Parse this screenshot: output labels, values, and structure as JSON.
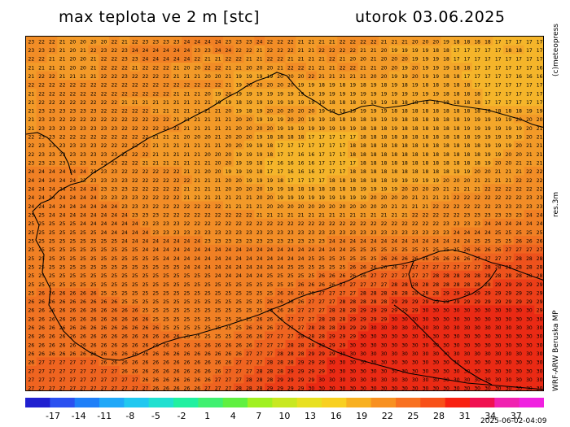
{
  "header": {
    "title": "max teplota ve 2 m [stc]",
    "date": "utorok 03.06.2025"
  },
  "side": {
    "credit": "(c)meteopress",
    "resolution": "res.3m",
    "model": "WRF-ARW Beruska MP"
  },
  "colorbar": {
    "labels": [
      "-17",
      "-14",
      "-11",
      "-8",
      "-5",
      "-2",
      "1",
      "4",
      "7",
      "10",
      "13",
      "16",
      "19",
      "22",
      "25",
      "28",
      "31",
      "34",
      "37"
    ],
    "colors": [
      "#2020d0",
      "#2b50f0",
      "#1f7ff8",
      "#20a8f8",
      "#20c8f0",
      "#20e0d0",
      "#20f0a0",
      "#40f070",
      "#60f040",
      "#a0f020",
      "#c8e820",
      "#e8e020",
      "#f8d020",
      "#f8b020",
      "#f89020",
      "#f87020",
      "#f85018",
      "#f82010",
      "#f01050",
      "#f020b0",
      "#f020e0"
    ],
    "timestamp": "2025-06-02-04:09"
  },
  "map": {
    "grid_rows": [
      "23 22 22 21 20 20 20 20 22 21 22 23 23 23 23 24 24 24 24 23 23 23 24 22 22 22 21 21 21 21 22 22 22 22 21 21 21 20 20 20 19 18 18 18 18 17 17 17 17 17",
      "23 23 23 21 20 21 22 23 22 23 24 24 24 24 24 24 23 23 24 24 22 22 21 22 22 22 21 21 22 22 22 22 21 21 20 19 19 19 19 18 18 17 17 17 17 17 18 18 17 17",
      "22 22 21 21 20 20 21 22 22 23 23 24 24 24 24 24 22 21 21 22 22 21 21 22 22 21 21 21 21 22 21 20 20 21 20 20 20 19 19 19 18 17 17 17 17 17 17 17 17 17",
      "21 21 21 21 20 20 21 22 22 22 21 22 22 22 21 20 20 22 22 21 21 20 20 20 21 22 22 21 21 21 22 22 21 21 20 20 19 20 19 19 19 18 18 17 17 17 17 17 17 16",
      "21 22 22 21 21 21 21 22 22 23 22 22 22 22 21 21 21 20 20 21 19 19 19 19 20 20 20 22 21 21 21 21 21 20 20 19 19 20 19 19 18 18 17 17 17 17 17 16 16 16",
      "22 22 22 22 22 22 22 22 22 22 22 22 22 22 22 22 22 22 22 21 19 20 20 20 20 20 19 19 18 19 18 19 18 19 18 19 18 19 18 18 18 18 18 17 17 17 17 17 17 17",
      "21 22 22 22 22 22 22 22 22 22 22 22 22 22 21 21 21 20 19 20 19 19 19 19 19 19 19 19 19 19 19 19 19 19 19 19 19 19 19 19 18 18 18 18 17 17 17 17 17 17",
      "21 22 22 22 22 22 22 22 22 21 21 21 21 21 21 21 21 21 19 19 18 19 19 19 19 19 19 19 19 18 18 18 19 19 19 18 18 18 18 18 18 18 18 18 17 17 17 17 17 17",
      "21 23 23 23 23 23 23 22 22 22 22 22 21 21 21 21 21 21 21 20 19 18 19 20 20 20 20 20 19 19 19 19 19 19 19 18 18 18 18 18 18 18 18 18 18 18 18 18 19 19",
      "21 23 23 22 22 22 22 22 22 22 22 22 22 22 21 21 21 21 21 21 20 20 19 19 19 20 20 19 19 18 18 18 18 19 19 19 18 18 18 18 18 18 19 19 19 19 19 20 20 20",
      "21 23 23 23 23 23 23 23 23 22 22 22 22 22 22 21 21 21 21 21 20 20 20 20 19 19 19 19 19 19 19 19 18 18 18 19 18 18 18 18 18 18 19 19 19 19 19 19 20 21",
      "22 23 23 22 22 22 22 22 22 22 22 22 21 21 21 20 20 20 21 20 20 20 19 18 18 18 18 17 17 17 17 17 18 18 18 18 18 18 18 18 18 18 18 19 19 19 19 19 20 21",
      "22 23 23 23 23 23 23 22 22 22 22 22 21 21 21 21 21 21 21 20 20 19 19 18 17 17 17 17 17 17 17 18 18 18 18 18 18 18 18 18 18 18 18 18 19 19 19 20 21 21",
      "22 23 23 23 23 23 23 23 23 22 22 22 21 21 21 21 21 20 20 20 19 19 19 18 17 17 16 16 17 17 17 18 18 18 18 18 18 18 18 18 18 18 18 18 19 19 20 20 21 21",
      "23 23 23 23 23 23 23 23 23 22 22 21 21 21 21 21 21 21 20 20 19 19 18 17 16 16 16 16 17 17 17 17 18 18 18 18 18 18 18 18 18 18 18 18 19 20 20 21 21 21",
      "24 24 24 24 24 24 23 23 23 22 22 22 22 22 22 21 21 20 20 19 19 19 18 17 17 16 16 16 17 17 17 18 18 18 18 18 18 18 18 18 18 19 19 20 20 21 21 21 22 22",
      "24 24 24 24 24 23 23 23 23 23 22 22 22 22 22 22 21 21 21 20 20 19 19 19 18 17 17 17 17 18 18 18 18 18 18 19 19 19 19 19 20 20 20 21 21 21 21 22 22 22",
      "24 24 24 24 24 24 24 23 23 23 22 22 22 22 22 21 21 21 21 20 20 20 20 19 19 18 18 18 18 18 18 18 19 19 19 19 20 20 20 20 21 21 21 21 22 22 22 22 22 22",
      "24 24 24 24 24 24 24 23 23 23 23 22 22 22 22 21 21 21 21 21 21 21 20 20 19 19 19 19 19 19 19 19 19 20 20 20 20 21 21 21 21 22 22 22 22 22 22 22 23 23",
      "24 24 24 24 24 24 24 24 24 23 23 23 22 22 22 22 22 22 22 21 21 21 21 20 20 20 20 20 20 20 20 20 20 20 20 21 21 21 21 22 22 22 22 22 22 23 23 23 23 23",
      "25 25 24 24 24 24 24 24 24 24 23 23 23 22 22 22 22 22 22 22 22 22 21 21 21 21 21 21 21 21 21 21 21 21 21 21 21 22 22 22 22 22 23 23 23 23 23 23 24 24",
      "25 25 25 25 25 24 24 24 24 24 24 23 23 23 23 22 22 22 22 22 22 22 22 22 22 22 22 22 22 22 22 22 22 22 22 22 22 22 22 22 23 23 23 23 24 24 24 24 24 24",
      "25 25 25 25 25 25 25 24 24 24 24 24 23 23 23 23 23 23 23 23 23 23 23 23 23 23 23 23 23 23 23 23 23 23 23 23 23 23 23 23 23 24 24 24 24 25 25 25 25 25",
      "25 25 25 25 25 25 25 25 25 24 24 24 24 24 24 24 24 23 23 23 23 23 23 23 23 23 23 23 23 24 24 24 24 24 24 24 24 24 24 24 24 24 24 25 25 25 25 26 26 26",
      "25 25 25 25 25 25 25 25 25 25 25 24 24 24 24 24 24 24 24 24 24 24 24 24 24 24 24 24 24 24 24 25 25 25 25 25 25 25 25 25 25 25 26 26 26 26 27 27 27 27",
      "25 25 25 25 25 25 25 25 25 25 25 25 25 24 24 24 24 24 24 24 24 24 24 24 24 24 24 25 25 25 25 25 25 25 26 26 26 26 26 26 26 26 26 27 27 27 27 28 28 28",
      "25 25 25 25 25 25 25 25 25 25 25 25 25 25 25 24 24 24 24 24 24 24 24 24 24 25 25 25 25 25 25 26 26 26 26 26 27 27 27 27 27 27 27 27 28 28 28 28 28 28",
      "25 25 25 25 25 25 25 25 25 25 25 25 25 25 25 25 25 25 24 24 24 24 24 25 25 25 25 25 26 26 26 26 26 27 27 27 27 27 27 28 28 28 28 28 28 28 28 28 28 28",
      "25 25 25 25 25 25 25 25 25 25 25 25 25 25 25 25 25 25 25 25 25 25 25 25 25 25 26 26 26 26 27 27 27 27 27 28 28 28 28 28 28 28 28 28 28 29 29 29 29 29",
      "25 26 26 26 26 26 26 25 25 25 25 25 25 25 25 25 25 25 25 25 25 25 25 25 26 26 26 26 27 27 27 27 28 28 28 28 28 28 28 28 29 29 29 29 29 29 29 29 29 29",
      "26 26 26 26 26 26 26 26 26 25 25 25 25 25 25 25 25 25 25 25 25 25 25 26 26 26 26 27 27 27 28 28 28 28 28 29 29 29 29 29 29 29 29 29 29 29 29 29 29 29",
      "26 26 26 26 26 26 26 26 26 26 26 25 25 25 25 25 25 25 25 25 25 25 25 26 26 26 27 27 27 28 28 28 29 29 29 29 29 29 30 30 30 30 30 30 30 30 30 30 30 29",
      "26 26 26 26 26 26 26 26 26 26 26 26 25 25 25 25 25 25 25 25 25 25 26 26 26 27 27 27 28 28 28 29 29 29 29 30 30 30 30 30 30 30 30 30 30 30 30 30 30 30",
      "26 26 26 26 26 26 26 26 26 26 26 26 26 25 25 25 25 25 25 25 25 26 26 26 27 27 27 28 28 28 29 29 29 30 30 30 30 30 30 30 30 30 30 30 30 30 30 30 30 30",
      "26 26 26 26 26 26 26 26 26 26 26 26 26 26 26 25 25 25 25 25 26 26 26 27 27 27 28 28 28 29 29 29 30 30 30 30 30 30 30 30 30 30 30 30 30 30 30 30 30 30",
      "26 26 26 26 26 26 26 26 26 26 26 26 26 26 26 26 26 26 26 26 26 26 27 27 27 28 28 28 29 29 29 30 30 30 30 30 30 30 30 30 30 30 30 30 30 30 30 30 30 30",
      "26 26 26 26 26 26 26 26 26 26 26 26 26 26 26 26 26 26 26 26 26 27 27 27 28 28 28 29 29 29 30 30 30 30 30 30 30 30 30 30 30 30 30 30 30 30 30 30 30 30",
      "26 27 27 27 27 27 27 26 26 26 26 26 26 26 26 26 26 26 26 26 27 27 27 28 28 28 29 29 29 30 30 30 30 30 30 30 30 30 30 30 30 30 30 30 30 30 30 30 30 30",
      "27 27 27 27 27 27 27 27 27 26 26 26 26 26 26 26 26 26 26 27 27 27 28 28 28 29 29 29 29 30 30 30 30 30 30 30 30 30 30 30 30 30 30 30 30 30 30 30 30 30",
      "27 27 27 27 27 27 27 27 27 27 27 26 26 26 26 26 26 26 27 27 27 28 28 28 29 29 29 29 30 30 30 30 30 30 30 30 30 30 30 30 30 30 30 30 30 30 30 30 30 30",
      "27 27 27 27 27 27 27 27 27 27 27 27 26 26 26 26 26 27 27 27 28 28 28 29 29 29 29 30 30 30 30 30 30 30 30 30 30 30 30 30 30 30 30 30 30 30 30 30 30 30"
    ]
  }
}
